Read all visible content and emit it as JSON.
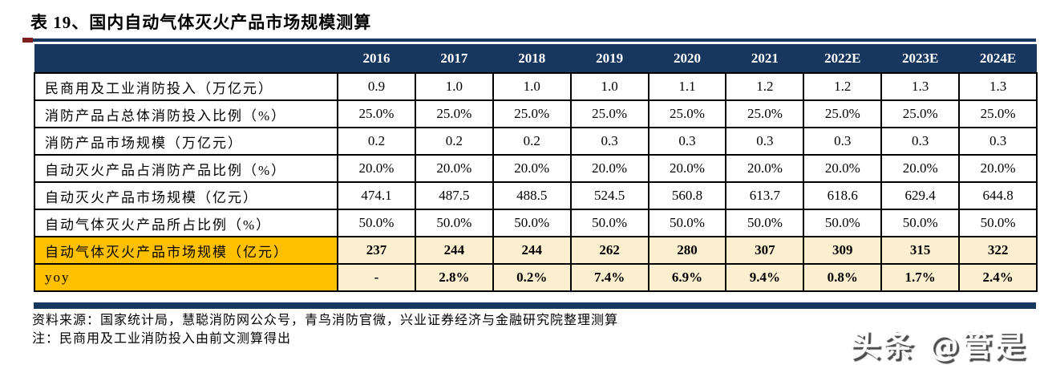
{
  "title": "表 19、国内自动气体灭火产品市场规模测算",
  "table": {
    "header_years": [
      "2016",
      "2017",
      "2018",
      "2019",
      "2020",
      "2021",
      "2022E",
      "2023E",
      "2024E"
    ],
    "rows": [
      {
        "label": "民商用及工业消防投入（万亿元）",
        "values": [
          "0.9",
          "1.0",
          "1.0",
          "1.0",
          "1.1",
          "1.2",
          "1.2",
          "1.3",
          "1.3"
        ],
        "highlight": false
      },
      {
        "label": "消防产品占总体消防投入比例（%）",
        "values": [
          "25.0%",
          "25.0%",
          "25.0%",
          "25.0%",
          "25.0%",
          "25.0%",
          "25.0%",
          "25.0%",
          "25.0%"
        ],
        "highlight": false
      },
      {
        "label": "消防产品市场规模（万亿元）",
        "values": [
          "0.2",
          "0.2",
          "0.2",
          "0.3",
          "0.3",
          "0.3",
          "0.3",
          "0.3",
          "0.3"
        ],
        "highlight": false
      },
      {
        "label": "自动灭火产品占消防产品比例（%）",
        "values": [
          "20.0%",
          "20.0%",
          "20.0%",
          "20.0%",
          "20.0%",
          "20.0%",
          "20.0%",
          "20.0%",
          "20.0%"
        ],
        "highlight": false
      },
      {
        "label": "自动灭火产品市场规模（亿元）",
        "values": [
          "474.1",
          "487.5",
          "488.5",
          "524.5",
          "560.8",
          "613.7",
          "618.6",
          "629.4",
          "644.8"
        ],
        "highlight": false
      },
      {
        "label": "自动气体灭火产品所占比例（%）",
        "values": [
          "50.0%",
          "50.0%",
          "50.0%",
          "50.0%",
          "50.0%",
          "50.0%",
          "50.0%",
          "50.0%",
          "50.0%"
        ],
        "highlight": false
      },
      {
        "label": "自动气体灭火产品市场规模（亿元）",
        "values": [
          "237",
          "244",
          "244",
          "262",
          "280",
          "307",
          "309",
          "315",
          "322"
        ],
        "highlight": true
      },
      {
        "label": "yoy",
        "values": [
          "-",
          "2.8%",
          "0.2%",
          "7.4%",
          "6.9%",
          "9.4%",
          "0.8%",
          "1.7%",
          "2.4%"
        ],
        "highlight": true
      }
    ]
  },
  "footer": {
    "source": "资料来源：国家统计局，慧聪消防网公众号，青鸟消防官微，兴业证券经济与金融研究院整理测算",
    "note": "注：民商用及工业消防投入由前文测算得出"
  },
  "watermark": "头条 @管是",
  "colors": {
    "header_navy": "#17375E",
    "rule_red_accent": "#7E1F1F",
    "highlight_orange": "#FFC000",
    "highlight_cream": "#FCEFD0"
  }
}
